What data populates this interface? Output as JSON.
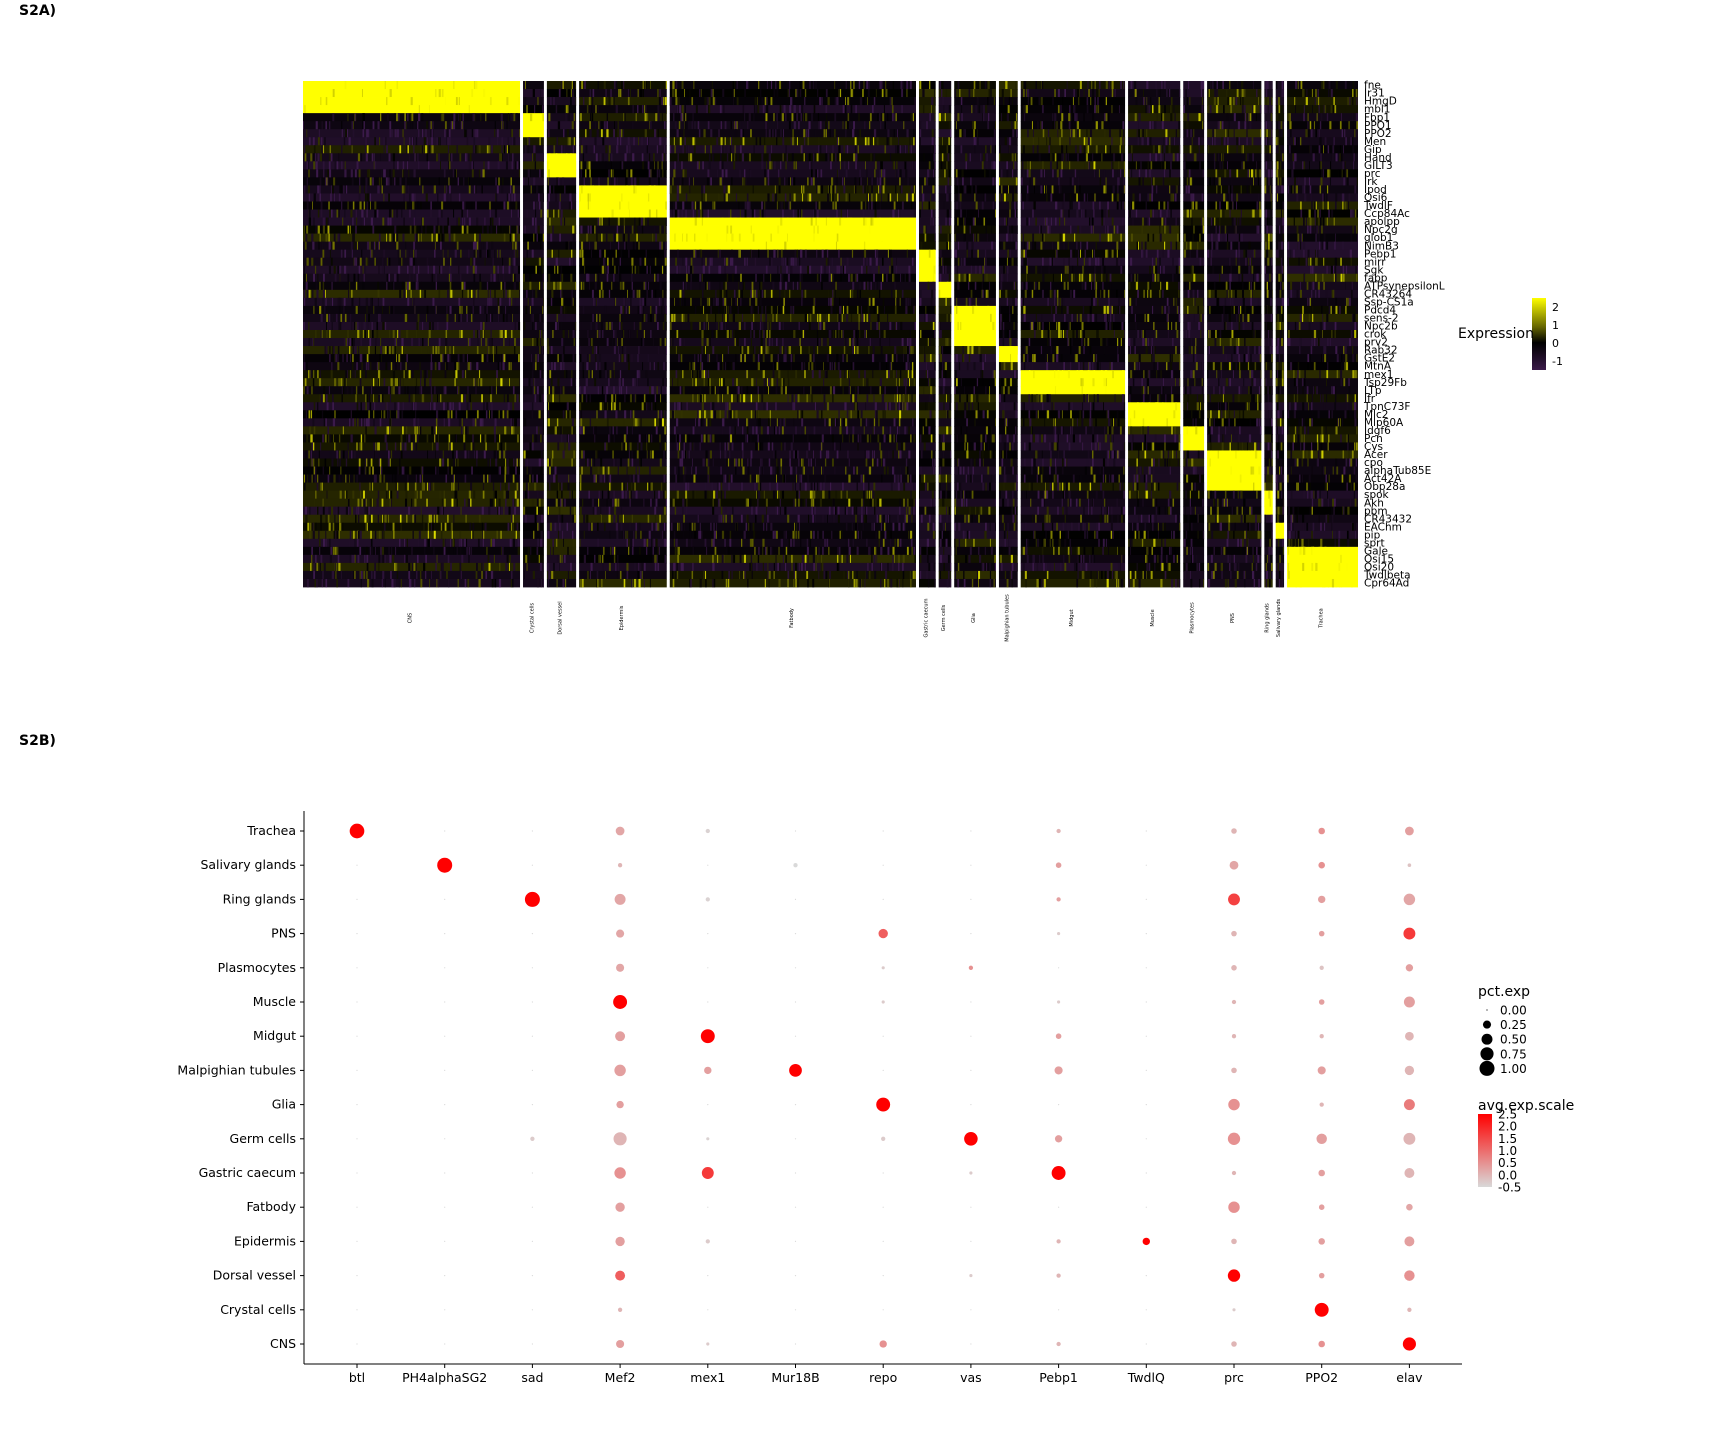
{
  "panels": {
    "a_label": "S2A)",
    "b_label": "S2B)"
  },
  "colors": {
    "low": "#3b1a4a",
    "mid": "#000000",
    "high": "#ffff00",
    "dot_low": "#d9d9d9",
    "dot_high": "#ff0000"
  },
  "chart_data": [
    {
      "type": "heatmap",
      "genes": [
        "fne",
        "Ir31",
        "HmgD",
        "mbl1",
        "Fbp1",
        "PPO1",
        "PPO2",
        "Men",
        "Gip",
        "Hand",
        "GILT3",
        "prc",
        "Irk",
        "Ipod",
        "Osi6",
        "TwdlF",
        "Ccp84Ac",
        "apolpp",
        "Npc2g",
        "glob1",
        "NimB3",
        "Pebp1",
        "mirr",
        "Sgk",
        "fabp",
        "ATPsynepsilonL",
        "CR43264",
        "Ssp-CS1a",
        "Pdcd4",
        "sens-2",
        "Npc2b",
        "crok",
        "prv2",
        "Rab32",
        "GstE2",
        "MtnA",
        "mex1",
        "Tsp29Fb",
        "LTp",
        "Ifr",
        "TpnC73F",
        "Mlc2",
        "Mlp60A",
        "Idgf6",
        "Pcn",
        "Cys",
        "Acer",
        "cpo",
        "alphaTub85E",
        "Act42A",
        "Obp28a",
        "spok",
        "Akh",
        "pbm",
        "CR43432",
        "EAChm",
        "pip",
        "sprt",
        "Gale",
        "Osi15",
        "Osi20",
        "Twdlbeta",
        "Cpr64Ad"
      ],
      "clusters": [
        "CNS",
        "Crystal cells",
        "Dorsal vessel",
        "Epidermis",
        "Fatbody",
        "Gastric caecum",
        "Germ cells",
        "Glia",
        "Malpighian tubules",
        "Midgut",
        "Muscle",
        "Plasmocytes",
        "PNS",
        "Ring glands",
        "Salivary glands",
        "Trachea"
      ],
      "cluster_relative_width": [
        104,
        10,
        14,
        42,
        118,
        8,
        6,
        20,
        9,
        50,
        25,
        10,
        26,
        4,
        4,
        34
      ],
      "colorbar": {
        "title": "Expression",
        "ticks": [
          2,
          1,
          0,
          -1
        ],
        "range": [
          -1.5,
          2.5
        ]
      }
    },
    {
      "type": "scatter",
      "genes": [
        "btl",
        "PH4alphaSG2",
        "sad",
        "Mef2",
        "mex1",
        "Mur18B",
        "repo",
        "vas",
        "Pebp1",
        "TwdlQ",
        "prc",
        "PPO2",
        "elav"
      ],
      "clusters_top_to_bottom": [
        "Trachea",
        "Salivary glands",
        "Ring glands",
        "PNS",
        "Plasmocytes",
        "Muscle",
        "Midgut",
        "Malpighian tubules",
        "Glia",
        "Germ cells",
        "Gastric caecum",
        "Fatbody",
        "Epidermis",
        "Dorsal vessel",
        "Crystal cells",
        "CNS"
      ],
      "pct_exp": [
        [
          0.95,
          0,
          0,
          0.3,
          0.05,
          0,
          0,
          0,
          0.05,
          0,
          0.1,
          0.15,
          0.3
        ],
        [
          0,
          1,
          0,
          0.05,
          0,
          0.05,
          0,
          0,
          0.1,
          0,
          0.3,
          0.15,
          0.03
        ],
        [
          0,
          0,
          1,
          0.5,
          0.05,
          0,
          0,
          0,
          0.05,
          0,
          0.6,
          0.2,
          0.55
        ],
        [
          0,
          0,
          0,
          0.25,
          0,
          0,
          0.35,
          0,
          0.02,
          0,
          0.1,
          0.1,
          0.6
        ],
        [
          0,
          0,
          0,
          0.25,
          0,
          0,
          0.02,
          0.05,
          0,
          0,
          0.1,
          0.05,
          0.2
        ],
        [
          0,
          0,
          0,
          0.85,
          0,
          0,
          0.02,
          0,
          0.02,
          0,
          0.05,
          0.1,
          0.5
        ],
        [
          0,
          0,
          0,
          0.4,
          0.85,
          0,
          0,
          0,
          0.1,
          0,
          0.05,
          0.05,
          0.3
        ],
        [
          0,
          0,
          0,
          0.55,
          0.2,
          0.7,
          0,
          0,
          0.25,
          0,
          0.1,
          0.25,
          0.35
        ],
        [
          0,
          0,
          0,
          0.2,
          0,
          0,
          0.85,
          0,
          0,
          0,
          0.55,
          0.05,
          0.5
        ],
        [
          0,
          0,
          0.05,
          0.75,
          0.02,
          0,
          0.05,
          0.8,
          0.2,
          0,
          0.65,
          0.45,
          0.6
        ],
        [
          0,
          0,
          0,
          0.55,
          0.6,
          0,
          0,
          0.02,
          0.85,
          0,
          0.05,
          0.15,
          0.4
        ],
        [
          0,
          0,
          0,
          0.35,
          0,
          0,
          0,
          0,
          0,
          0,
          0.55,
          0.1,
          0.15
        ],
        [
          0,
          0,
          0,
          0.35,
          0.05,
          0,
          0,
          0,
          0.05,
          0.2,
          0.1,
          0.15,
          0.4
        ],
        [
          0,
          0,
          0,
          0.4,
          0,
          0,
          0,
          0.02,
          0.05,
          0,
          0.65,
          0.1,
          0.45
        ],
        [
          0,
          0,
          0,
          0.05,
          0,
          0,
          0,
          0,
          0,
          0,
          0.02,
          0.85,
          0.05
        ],
        [
          0,
          0,
          0,
          0.25,
          0.02,
          0,
          0.2,
          0,
          0.05,
          0,
          0.1,
          0.15,
          0.75
        ]
      ],
      "avg_exp_scale": [
        [
          2.5,
          -0.5,
          -0.5,
          0.2,
          -0.4,
          -0.5,
          -0.5,
          -0.5,
          0.0,
          -0.5,
          0.0,
          0.5,
          0.3
        ],
        [
          -0.5,
          2.5,
          -0.5,
          0.0,
          -0.5,
          -0.5,
          -0.5,
          -0.5,
          0.3,
          -0.5,
          0.2,
          0.5,
          -0.2
        ],
        [
          -0.5,
          -0.5,
          2.5,
          0.2,
          -0.4,
          -0.5,
          -0.5,
          -0.5,
          0.3,
          -0.5,
          1.6,
          0.3,
          0.2
        ],
        [
          -0.5,
          -0.5,
          -0.5,
          0.2,
          -0.5,
          -0.5,
          1.2,
          -0.5,
          -0.3,
          -0.5,
          0.0,
          0.3,
          1.7
        ],
        [
          -0.5,
          -0.5,
          -0.5,
          0.2,
          -0.5,
          -0.5,
          -0.3,
          0.5,
          -0.5,
          -0.5,
          0.0,
          -0.2,
          0.3
        ],
        [
          -0.5,
          -0.5,
          -0.5,
          2.5,
          -0.5,
          -0.5,
          -0.3,
          -0.5,
          -0.3,
          -0.5,
          0.0,
          0.3,
          0.3
        ],
        [
          -0.5,
          -0.5,
          -0.5,
          0.3,
          2.5,
          -0.5,
          -0.5,
          -0.5,
          0.3,
          -0.5,
          0.0,
          0.0,
          0.0
        ],
        [
          -0.5,
          -0.5,
          -0.5,
          0.3,
          0.3,
          2.5,
          -0.5,
          -0.5,
          0.3,
          -0.5,
          0.0,
          0.3,
          0.0
        ],
        [
          -0.5,
          -0.5,
          -0.5,
          0.3,
          -0.5,
          -0.5,
          2.5,
          -0.5,
          -0.5,
          -0.5,
          0.5,
          0.0,
          0.8
        ],
        [
          -0.5,
          -0.5,
          -0.3,
          0.0,
          -0.4,
          -0.5,
          -0.3,
          2.5,
          0.3,
          -0.5,
          0.5,
          0.3,
          0.0
        ],
        [
          -0.5,
          -0.5,
          -0.5,
          0.5,
          1.7,
          -0.5,
          -0.5,
          -0.3,
          2.5,
          -0.5,
          0.0,
          0.3,
          0.0
        ],
        [
          -0.5,
          -0.5,
          -0.5,
          0.3,
          -0.5,
          -0.5,
          -0.5,
          -0.5,
          -0.5,
          -0.5,
          0.5,
          0.3,
          0.2
        ],
        [
          -0.5,
          -0.5,
          -0.5,
          0.3,
          -0.3,
          -0.5,
          -0.5,
          -0.5,
          0.0,
          2.5,
          0.0,
          0.3,
          0.3
        ],
        [
          -0.5,
          -0.5,
          -0.5,
          1.2,
          -0.5,
          -0.5,
          -0.5,
          -0.3,
          0.0,
          -0.5,
          2.5,
          0.3,
          0.5
        ],
        [
          -0.5,
          -0.5,
          -0.5,
          0.0,
          -0.5,
          -0.5,
          -0.5,
          -0.5,
          -0.5,
          -0.5,
          -0.3,
          2.5,
          0.0
        ],
        [
          -0.5,
          -0.5,
          -0.5,
          0.3,
          -0.3,
          -0.5,
          0.5,
          -0.5,
          0.0,
          -0.5,
          0.0,
          0.5,
          2.5
        ]
      ],
      "legend_size": {
        "title": "pct.exp",
        "values": [
          0.0,
          0.25,
          0.5,
          0.75,
          1.0
        ],
        "labels": [
          "0.00",
          "0.25",
          "0.50",
          "0.75",
          "1.00"
        ]
      },
      "legend_color": {
        "title": "avg.exp.scale",
        "labels": [
          "2.5",
          "2.0",
          "1.5",
          "1.0",
          "0.5",
          "0.0",
          "-0.5"
        ],
        "range": [
          -0.5,
          2.5
        ]
      }
    }
  ]
}
